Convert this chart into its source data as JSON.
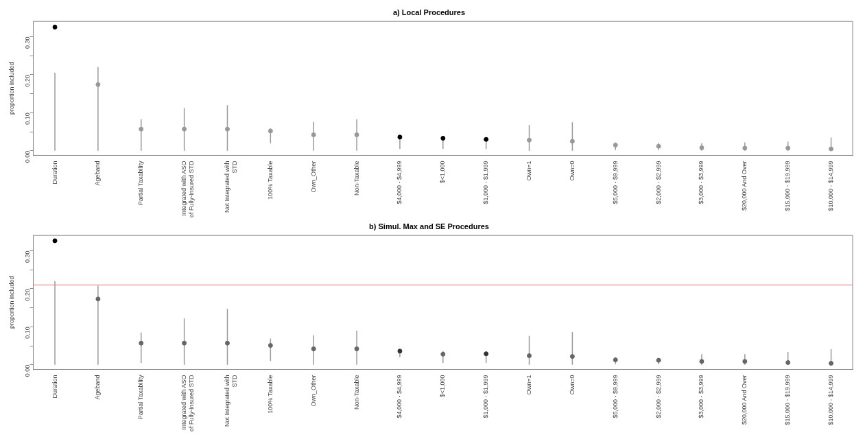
{
  "chart_data": [
    {
      "type": "scatter",
      "title": "a) Local Procedures",
      "ylabel": "proportion included",
      "marker": "circle",
      "grid": false,
      "categories": [
        "Duration",
        "Ageband",
        "Partial Taxability",
        "Integrated with ASO of Fully-Insured STD",
        "Not Integrated with STD",
        "100% Taxable",
        "Own_Other",
        "Non-Taxable",
        "$4,000 - $4,999",
        "$<1,000",
        "$1,000 - $1,999",
        "Own=1",
        "Own=0",
        "$5,000 - $9,999",
        "$2,000 - $2,999",
        "$3,000 - $3,999",
        "$20,000 And Over",
        "$15,000 - $19,999",
        "$10,000 - $14,999"
      ],
      "values": [
        0.325,
        0.174,
        0.057,
        0.057,
        0.057,
        0.052,
        0.042,
        0.042,
        0.036,
        0.033,
        0.03,
        0.028,
        0.025,
        0.015,
        0.012,
        0.008,
        0.007,
        0.007,
        0.005
      ],
      "errors": [
        [
          0,
          0.205
        ],
        [
          0,
          0.22
        ],
        [
          0,
          0.083
        ],
        [
          0,
          0.112
        ],
        [
          0,
          0.12
        ],
        [
          0.02,
          0.059
        ],
        [
          0,
          0.076
        ],
        [
          0,
          0.083
        ],
        [
          0.005,
          0.04
        ],
        [
          0.005,
          0.036
        ],
        [
          0.005,
          0.034
        ],
        [
          0,
          0.068
        ],
        [
          0,
          0.075
        ],
        [
          0.002,
          0.022
        ],
        [
          0.002,
          0.02
        ],
        [
          0,
          0.02
        ],
        [
          0,
          0.022
        ],
        [
          0,
          0.024
        ],
        [
          0,
          0.035
        ]
      ],
      "colors": [
        "#000000",
        "#999999",
        "#999999",
        "#999999",
        "#999999",
        "#999999",
        "#999999",
        "#999999",
        "#000000",
        "#000000",
        "#000000",
        "#999999",
        "#999999",
        "#999999",
        "#999999",
        "#999999",
        "#999999",
        "#999999",
        "#999999"
      ],
      "ylim": [
        -0.012,
        0.34
      ],
      "yticks": [
        {
          "value": 0,
          "label": "0.00"
        },
        {
          "value": 0.05,
          "label": null
        },
        {
          "value": 0.1,
          "label": "0.10"
        },
        {
          "value": 0.15,
          "label": null
        },
        {
          "value": 0.2,
          "label": "0.20"
        },
        {
          "value": 0.25,
          "label": null
        },
        {
          "value": 0.3,
          "label": "0.30"
        }
      ]
    },
    {
      "type": "scatter",
      "title": "b) Simul. Max and SE Procedures",
      "ylabel": "proportion included",
      "marker": "circle",
      "grid": false,
      "categories": [
        "Duration",
        "Ageband",
        "Partial Taxability",
        "Integrated with ASO of Fully-Insured STD",
        "Not Integrated with STD",
        "100% Taxable",
        "Own_Other",
        "Non-Taxable",
        "$4,000 - $4,999",
        "$<1,000",
        "$1,000 - $1,999",
        "Own=1",
        "Own=0",
        "$5,000 - $9,999",
        "$2,000 - $2,999",
        "$3,000 - $3,999",
        "$20,000 And Over",
        "$15,000 - $19,999",
        "$10,000 - $14,999"
      ],
      "values": [
        0.326,
        0.173,
        0.057,
        0.057,
        0.057,
        0.051,
        0.042,
        0.042,
        0.036,
        0.028,
        0.029,
        0.024,
        0.022,
        0.013,
        0.012,
        0.009,
        0.009,
        0.006,
        0.004
      ],
      "errors": [
        [
          0,
          0.22
        ],
        [
          0,
          0.208
        ],
        [
          0.005,
          0.085
        ],
        [
          0,
          0.122
        ],
        [
          0,
          0.147
        ],
        [
          0.01,
          0.069
        ],
        [
          0,
          0.078
        ],
        [
          0,
          0.09
        ],
        [
          0.02,
          0.04
        ],
        [
          0.005,
          0.036
        ],
        [
          0.005,
          0.036
        ],
        [
          0,
          0.076
        ],
        [
          0,
          0.086
        ],
        [
          0.002,
          0.02
        ],
        [
          0.002,
          0.018
        ],
        [
          0,
          0.028
        ],
        [
          0,
          0.028
        ],
        [
          0,
          0.034
        ],
        [
          0,
          0.041
        ]
      ],
      "colors": [
        "#000000",
        "#666666",
        "#666666",
        "#666666",
        "#666666",
        "#666666",
        "#666666",
        "#666666",
        "#333333",
        "#666666",
        "#333333",
        "#666666",
        "#666666",
        "#666666",
        "#666666",
        "#666666",
        "#666666",
        "#666666",
        "#666666"
      ],
      "ylim": [
        -0.012,
        0.34
      ],
      "yticks": [
        {
          "value": 0,
          "label": "0.00"
        },
        {
          "value": 0.05,
          "label": null
        },
        {
          "value": 0.1,
          "label": "0.10"
        },
        {
          "value": 0.15,
          "label": null
        },
        {
          "value": 0.2,
          "label": "0.20"
        },
        {
          "value": 0.25,
          "label": null
        },
        {
          "value": 0.3,
          "label": "0.30"
        }
      ],
      "ref_lines": [
        {
          "axis": "y",
          "value": 0.21,
          "color": "#e08080"
        }
      ]
    }
  ]
}
